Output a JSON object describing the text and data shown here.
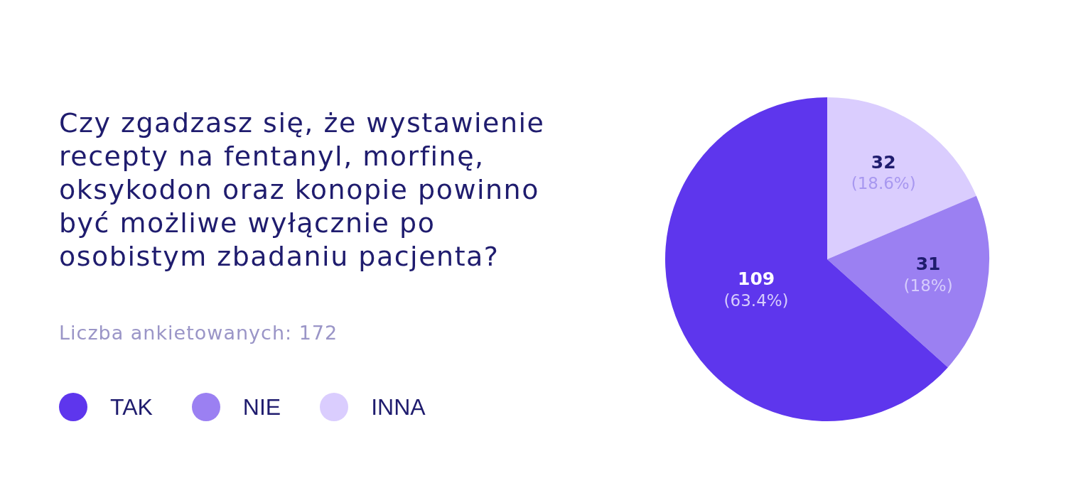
{
  "chart_data": {
    "type": "pie",
    "title": "Czy zgadzasz się, że wystawienie recepty na fentanyl, morfinę, oksykodon oraz konopie powinno być możliwe wyłącznie po osobistym zbadaniu pacjenta?",
    "subtitle": "Liczba ankietowanych: 172",
    "categories": [
      "TAK",
      "NIE",
      "INNA"
    ],
    "values": [
      109,
      31,
      32
    ],
    "colors": [
      "#5e36ed",
      "#9b80f2",
      "#dacdfe"
    ],
    "value_labels": [
      "109 (63.4%)",
      "31 (18%)",
      "32 (18.6%)"
    ],
    "legend": "bottom left"
  }
}
